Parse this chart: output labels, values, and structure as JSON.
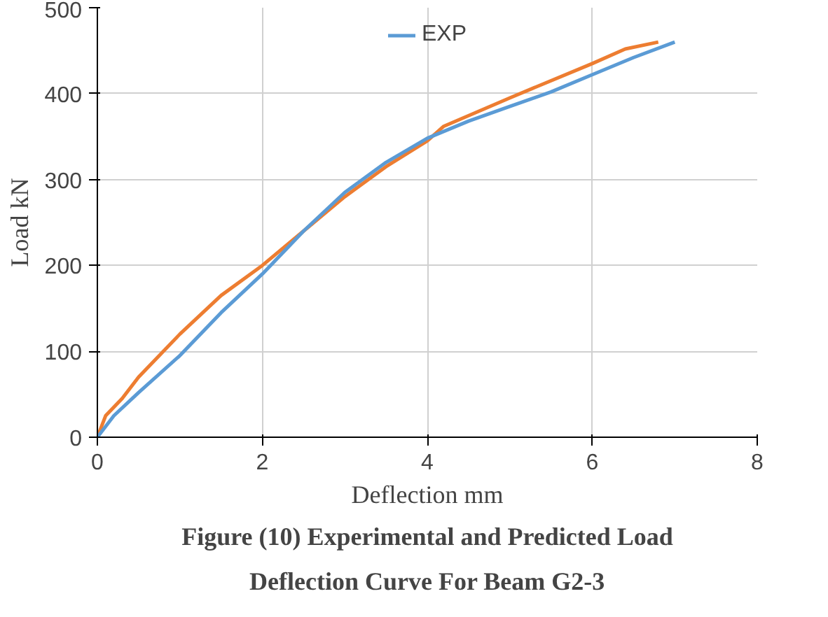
{
  "chart_data": {
    "type": "line",
    "title": "Figure (10) Experimental and Predicted Load Deflection Curve For Beam G2-3",
    "xlabel": "Deflection mm",
    "ylabel": "Load kN",
    "series": [
      {
        "color": "#ed7d31",
        "x": [
          0,
          0.1,
          0.3,
          0.5,
          1,
          1.5,
          2,
          2.5,
          3,
          3.5,
          4,
          4.2,
          5,
          6,
          6.4,
          6.8
        ],
        "values": [
          0,
          25,
          45,
          70,
          120,
          165,
          200,
          240,
          280,
          315,
          345,
          362,
          395,
          435,
          452,
          460
        ]
      },
      {
        "name": "EXP",
        "color": "#5b9bd5",
        "x": [
          0,
          0.2,
          0.5,
          1,
          1.5,
          2,
          2.5,
          3,
          3.5,
          4,
          4.5,
          5,
          5.5,
          6,
          6.5,
          7
        ],
        "values": [
          0,
          25,
          52,
          95,
          145,
          190,
          240,
          285,
          320,
          348,
          368,
          385,
          402,
          422,
          442,
          460
        ]
      }
    ],
    "xlim": [
      0,
      8
    ],
    "ylim": [
      0,
      500
    ],
    "xticks": [
      0,
      2,
      4,
      6,
      8
    ],
    "yticks": [
      0,
      100,
      200,
      300,
      400,
      500
    ],
    "grid": true,
    "legend": "top",
    "marker": "none",
    "line_style": "solid"
  }
}
